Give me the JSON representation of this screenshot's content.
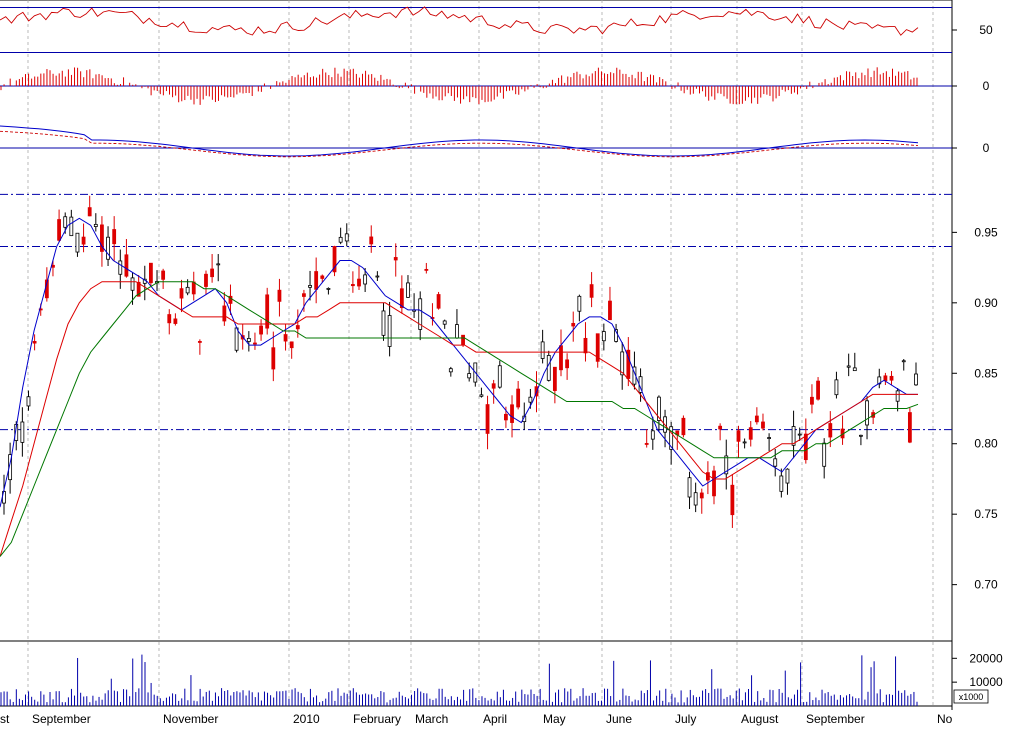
{
  "chart_data": {
    "type": "line",
    "title": "",
    "price_panel": {
      "type": "candlestick",
      "y_ticks": [
        0.7,
        0.75,
        0.8,
        0.85,
        0.9,
        0.95
      ],
      "ylim": [
        0.66,
        0.99
      ],
      "reference_lines": [
        0.81,
        0.94,
        0.977
      ],
      "moving_averages": [
        {
          "color": "#0000cc",
          "values": [
            0.755,
            0.79,
            0.84,
            0.88,
            0.91,
            0.94,
            0.955,
            0.96,
            0.955,
            0.94,
            0.93,
            0.925,
            0.92,
            0.915,
            0.905,
            0.9,
            0.895,
            0.9,
            0.905,
            0.91,
            0.9,
            0.88,
            0.87,
            0.87,
            0.875,
            0.88,
            0.885,
            0.9,
            0.91,
            0.92,
            0.93,
            0.93,
            0.925,
            0.915,
            0.905,
            0.9,
            0.895,
            0.895,
            0.89,
            0.88,
            0.87,
            0.86,
            0.85,
            0.84,
            0.83,
            0.82,
            0.815,
            0.83,
            0.85,
            0.865,
            0.875,
            0.885,
            0.89,
            0.89,
            0.885,
            0.87,
            0.85,
            0.83,
            0.81,
            0.8,
            0.79,
            0.78,
            0.77,
            0.775,
            0.78,
            0.785,
            0.79,
            0.79,
            0.785,
            0.78,
            0.79,
            0.8,
            0.81,
            0.815,
            0.82,
            0.825,
            0.83,
            0.84,
            0.845,
            0.84,
            0.835,
            0.835
          ]
        },
        {
          "color": "#dd0000",
          "values": [
            0.72,
            0.745,
            0.77,
            0.8,
            0.83,
            0.86,
            0.885,
            0.9,
            0.91,
            0.915,
            0.915,
            0.915,
            0.915,
            0.91,
            0.905,
            0.9,
            0.895,
            0.89,
            0.89,
            0.89,
            0.89,
            0.885,
            0.885,
            0.885,
            0.885,
            0.885,
            0.885,
            0.89,
            0.89,
            0.895,
            0.9,
            0.9,
            0.9,
            0.9,
            0.9,
            0.895,
            0.89,
            0.885,
            0.88,
            0.875,
            0.87,
            0.87,
            0.865,
            0.865,
            0.865,
            0.865,
            0.865,
            0.865,
            0.865,
            0.865,
            0.865,
            0.865,
            0.865,
            0.86,
            0.855,
            0.85,
            0.84,
            0.83,
            0.82,
            0.81,
            0.8,
            0.79,
            0.78,
            0.775,
            0.775,
            0.78,
            0.785,
            0.79,
            0.795,
            0.8,
            0.8,
            0.805,
            0.81,
            0.815,
            0.82,
            0.825,
            0.83,
            0.835,
            0.835,
            0.835,
            0.835,
            0.835
          ]
        },
        {
          "color": "#007700",
          "values": [
            0.72,
            0.73,
            0.75,
            0.77,
            0.79,
            0.81,
            0.83,
            0.85,
            0.865,
            0.875,
            0.885,
            0.895,
            0.905,
            0.91,
            0.915,
            0.915,
            0.915,
            0.915,
            0.91,
            0.91,
            0.905,
            0.9,
            0.895,
            0.89,
            0.885,
            0.88,
            0.88,
            0.875,
            0.875,
            0.875,
            0.875,
            0.875,
            0.875,
            0.875,
            0.875,
            0.875,
            0.875,
            0.875,
            0.875,
            0.875,
            0.875,
            0.875,
            0.87,
            0.865,
            0.86,
            0.855,
            0.85,
            0.845,
            0.84,
            0.835,
            0.83,
            0.83,
            0.83,
            0.83,
            0.83,
            0.825,
            0.825,
            0.82,
            0.815,
            0.81,
            0.805,
            0.8,
            0.795,
            0.79,
            0.79,
            0.79,
            0.79,
            0.79,
            0.79,
            0.795,
            0.795,
            0.795,
            0.8,
            0.8,
            0.805,
            0.81,
            0.815,
            0.82,
            0.825,
            0.825,
            0.825,
            0.828
          ]
        }
      ]
    },
    "rsi_panel": {
      "y_ticks": [
        50
      ],
      "reference_lines": [
        35,
        65
      ],
      "ylim": [
        30,
        70
      ]
    },
    "histogram_panel": {
      "y_ticks": [
        0
      ]
    },
    "macd_panel": {
      "y_ticks": [
        0
      ]
    },
    "volume_panel": {
      "y_ticks": [
        10000,
        20000
      ],
      "unit": "x1000"
    },
    "x_labels": [
      "st",
      "September",
      "November",
      "2010",
      "February",
      "March",
      "April",
      "May",
      "June",
      "July",
      "August",
      "September",
      "No"
    ]
  }
}
